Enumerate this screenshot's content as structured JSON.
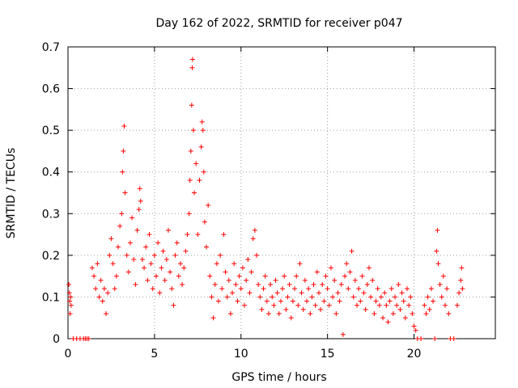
{
  "chart_data": {
    "type": "scatter",
    "title": "Day 162 of 2022, SRMTID for receiver p047",
    "xlabel": "GPS time / hours",
    "ylabel": "SRMTID / TECUs",
    "xlim": [
      0,
      24.7
    ],
    "ylim": [
      0,
      0.7
    ],
    "x_ticks": [
      0,
      5,
      10,
      15,
      20
    ],
    "x_tick_labels": [
      "0",
      "5",
      "10",
      "15",
      "20"
    ],
    "y_ticks": [
      0,
      0.1,
      0.2,
      0.3,
      0.4,
      0.5,
      0.6,
      0.7
    ],
    "y_tick_labels": [
      "0",
      "0.1",
      "0.2",
      "0.3",
      "0.4",
      "0.5",
      "0.6",
      "0.7"
    ],
    "grid": true,
    "marker": "+",
    "color": "#ff0000",
    "series": [
      {
        "name": "SRMTID",
        "points": [
          [
            0.05,
            0.13
          ],
          [
            0.08,
            0.11
          ],
          [
            0.1,
            0.09
          ],
          [
            0.12,
            0.06
          ],
          [
            0.15,
            0.1
          ],
          [
            0.18,
            0.08
          ],
          [
            0.3,
            0.0
          ],
          [
            0.5,
            0.0
          ],
          [
            0.7,
            0.0
          ],
          [
            0.9,
            0.0
          ],
          [
            1.0,
            0.0
          ],
          [
            1.1,
            0.0
          ],
          [
            1.2,
            0.0
          ],
          [
            1.4,
            0.17
          ],
          [
            1.5,
            0.15
          ],
          [
            1.6,
            0.12
          ],
          [
            1.7,
            0.18
          ],
          [
            1.8,
            0.1
          ],
          [
            1.9,
            0.14
          ],
          [
            2.0,
            0.09
          ],
          [
            2.1,
            0.12
          ],
          [
            2.2,
            0.06
          ],
          [
            2.3,
            0.11
          ],
          [
            2.4,
            0.2
          ],
          [
            2.5,
            0.24
          ],
          [
            2.6,
            0.18
          ],
          [
            2.7,
            0.12
          ],
          [
            2.8,
            0.15
          ],
          [
            2.9,
            0.22
          ],
          [
            3.0,
            0.27
          ],
          [
            3.1,
            0.3
          ],
          [
            3.15,
            0.4
          ],
          [
            3.2,
            0.45
          ],
          [
            3.25,
            0.51
          ],
          [
            3.3,
            0.35
          ],
          [
            3.4,
            0.2
          ],
          [
            3.5,
            0.16
          ],
          [
            3.6,
            0.23
          ],
          [
            3.7,
            0.29
          ],
          [
            3.8,
            0.19
          ],
          [
            3.9,
            0.13
          ],
          [
            4.0,
            0.26
          ],
          [
            4.1,
            0.31
          ],
          [
            4.15,
            0.36
          ],
          [
            4.2,
            0.33
          ],
          [
            4.3,
            0.19
          ],
          [
            4.4,
            0.17
          ],
          [
            4.5,
            0.22
          ],
          [
            4.6,
            0.14
          ],
          [
            4.7,
            0.25
          ],
          [
            4.8,
            0.18
          ],
          [
            4.9,
            0.12
          ],
          [
            5.0,
            0.2
          ],
          [
            5.1,
            0.15
          ],
          [
            5.2,
            0.23
          ],
          [
            5.3,
            0.11
          ],
          [
            5.4,
            0.17
          ],
          [
            5.5,
            0.21
          ],
          [
            5.6,
            0.14
          ],
          [
            5.7,
            0.19
          ],
          [
            5.8,
            0.26
          ],
          [
            5.9,
            0.16
          ],
          [
            6.0,
            0.12
          ],
          [
            6.1,
            0.08
          ],
          [
            6.2,
            0.2
          ],
          [
            6.3,
            0.23
          ],
          [
            6.4,
            0.15
          ],
          [
            6.5,
            0.18
          ],
          [
            6.6,
            0.13
          ],
          [
            6.7,
            0.17
          ],
          [
            6.8,
            0.21
          ],
          [
            6.9,
            0.25
          ],
          [
            7.0,
            0.3
          ],
          [
            7.05,
            0.38
          ],
          [
            7.1,
            0.45
          ],
          [
            7.15,
            0.56
          ],
          [
            7.18,
            0.65
          ],
          [
            7.2,
            0.67
          ],
          [
            7.25,
            0.5
          ],
          [
            7.3,
            0.35
          ],
          [
            7.4,
            0.42
          ],
          [
            7.5,
            0.25
          ],
          [
            7.6,
            0.38
          ],
          [
            7.7,
            0.46
          ],
          [
            7.75,
            0.52
          ],
          [
            7.8,
            0.5
          ],
          [
            7.85,
            0.4
          ],
          [
            7.9,
            0.28
          ],
          [
            8.0,
            0.22
          ],
          [
            8.1,
            0.32
          ],
          [
            8.2,
            0.15
          ],
          [
            8.3,
            0.1
          ],
          [
            8.4,
            0.05
          ],
          [
            8.5,
            0.13
          ],
          [
            8.6,
            0.18
          ],
          [
            8.7,
            0.09
          ],
          [
            8.8,
            0.2
          ],
          [
            8.9,
            0.12
          ],
          [
            9.0,
            0.25
          ],
          [
            9.1,
            0.16
          ],
          [
            9.2,
            0.1
          ],
          [
            9.3,
            0.14
          ],
          [
            9.4,
            0.06
          ],
          [
            9.5,
            0.11
          ],
          [
            9.6,
            0.18
          ],
          [
            9.7,
            0.13
          ],
          [
            9.8,
            0.09
          ],
          [
            9.9,
            0.15
          ],
          [
            10.0,
            0.12
          ],
          [
            10.1,
            0.17
          ],
          [
            10.2,
            0.08
          ],
          [
            10.3,
            0.14
          ],
          [
            10.4,
            0.19
          ],
          [
            10.5,
            0.11
          ],
          [
            10.6,
            0.16
          ],
          [
            10.7,
            0.24
          ],
          [
            10.8,
            0.26
          ],
          [
            10.9,
            0.2
          ],
          [
            11.0,
            0.13
          ],
          [
            11.1,
            0.1
          ],
          [
            11.2,
            0.07
          ],
          [
            11.3,
            0.12
          ],
          [
            11.4,
            0.15
          ],
          [
            11.5,
            0.09
          ],
          [
            11.6,
            0.06
          ],
          [
            11.7,
            0.13
          ],
          [
            11.8,
            0.1
          ],
          [
            11.9,
            0.08
          ],
          [
            12.0,
            0.14
          ],
          [
            12.1,
            0.11
          ],
          [
            12.2,
            0.06
          ],
          [
            12.3,
            0.09
          ],
          [
            12.4,
            0.12
          ],
          [
            12.5,
            0.15
          ],
          [
            12.6,
            0.07
          ],
          [
            12.7,
            0.1
          ],
          [
            12.8,
            0.13
          ],
          [
            12.9,
            0.05
          ],
          [
            13.0,
            0.09
          ],
          [
            13.1,
            0.12
          ],
          [
            13.2,
            0.15
          ],
          [
            13.3,
            0.08
          ],
          [
            13.4,
            0.18
          ],
          [
            13.5,
            0.11
          ],
          [
            13.6,
            0.07
          ],
          [
            13.7,
            0.14
          ],
          [
            13.8,
            0.09
          ],
          [
            13.9,
            0.12
          ],
          [
            14.0,
            0.06
          ],
          [
            14.1,
            0.1
          ],
          [
            14.2,
            0.13
          ],
          [
            14.3,
            0.08
          ],
          [
            14.4,
            0.16
          ],
          [
            14.5,
            0.11
          ],
          [
            14.6,
            0.07
          ],
          [
            14.7,
            0.13
          ],
          [
            14.8,
            0.09
          ],
          [
            14.9,
            0.15
          ],
          [
            15.0,
            0.12
          ],
          [
            15.1,
            0.08
          ],
          [
            15.2,
            0.17
          ],
          [
            15.3,
            0.1
          ],
          [
            15.4,
            0.14
          ],
          [
            15.5,
            0.06
          ],
          [
            15.6,
            0.11
          ],
          [
            15.7,
            0.09
          ],
          [
            15.8,
            0.13
          ],
          [
            15.9,
            0.01
          ],
          [
            16.0,
            0.15
          ],
          [
            16.1,
            0.18
          ],
          [
            16.2,
            0.12
          ],
          [
            16.3,
            0.16
          ],
          [
            16.4,
            0.21
          ],
          [
            16.5,
            0.1
          ],
          [
            16.6,
            0.14
          ],
          [
            16.7,
            0.08
          ],
          [
            16.8,
            0.12
          ],
          [
            16.9,
            0.09
          ],
          [
            17.0,
            0.15
          ],
          [
            17.1,
            0.11
          ],
          [
            17.2,
            0.07
          ],
          [
            17.3,
            0.13
          ],
          [
            17.4,
            0.17
          ],
          [
            17.5,
            0.1
          ],
          [
            17.6,
            0.14
          ],
          [
            17.7,
            0.06
          ],
          [
            17.8,
            0.09
          ],
          [
            17.9,
            0.12
          ],
          [
            18.0,
            0.08
          ],
          [
            18.1,
            0.1
          ],
          [
            18.2,
            0.05
          ],
          [
            18.3,
            0.11
          ],
          [
            18.4,
            0.08
          ],
          [
            18.5,
            0.04
          ],
          [
            18.6,
            0.09
          ],
          [
            18.7,
            0.12
          ],
          [
            18.8,
            0.06
          ],
          [
            18.9,
            0.1
          ],
          [
            19.0,
            0.08
          ],
          [
            19.1,
            0.13
          ],
          [
            19.2,
            0.07
          ],
          [
            19.3,
            0.11
          ],
          [
            19.4,
            0.09
          ],
          [
            19.5,
            0.05
          ],
          [
            19.6,
            0.12
          ],
          [
            19.7,
            0.08
          ],
          [
            19.8,
            0.1
          ],
          [
            19.9,
            0.06
          ],
          [
            20.0,
            0.03
          ],
          [
            20.1,
            0.02
          ],
          [
            20.2,
            0.0
          ],
          [
            20.4,
            0.0
          ],
          [
            20.6,
            0.08
          ],
          [
            20.7,
            0.06
          ],
          [
            20.8,
            0.1
          ],
          [
            20.9,
            0.07
          ],
          [
            21.0,
            0.12
          ],
          [
            21.1,
            0.09
          ],
          [
            21.2,
            0.0
          ],
          [
            21.3,
            0.21
          ],
          [
            21.35,
            0.26
          ],
          [
            21.4,
            0.18
          ],
          [
            21.5,
            0.13
          ],
          [
            21.6,
            0.1
          ],
          [
            21.7,
            0.15
          ],
          [
            21.8,
            0.08
          ],
          [
            21.9,
            0.12
          ],
          [
            22.0,
            0.06
          ],
          [
            22.1,
            0.0
          ],
          [
            22.3,
            0.0
          ],
          [
            22.5,
            0.08
          ],
          [
            22.6,
            0.11
          ],
          [
            22.7,
            0.14
          ],
          [
            22.75,
            0.17
          ],
          [
            22.8,
            0.12
          ]
        ]
      }
    ]
  }
}
